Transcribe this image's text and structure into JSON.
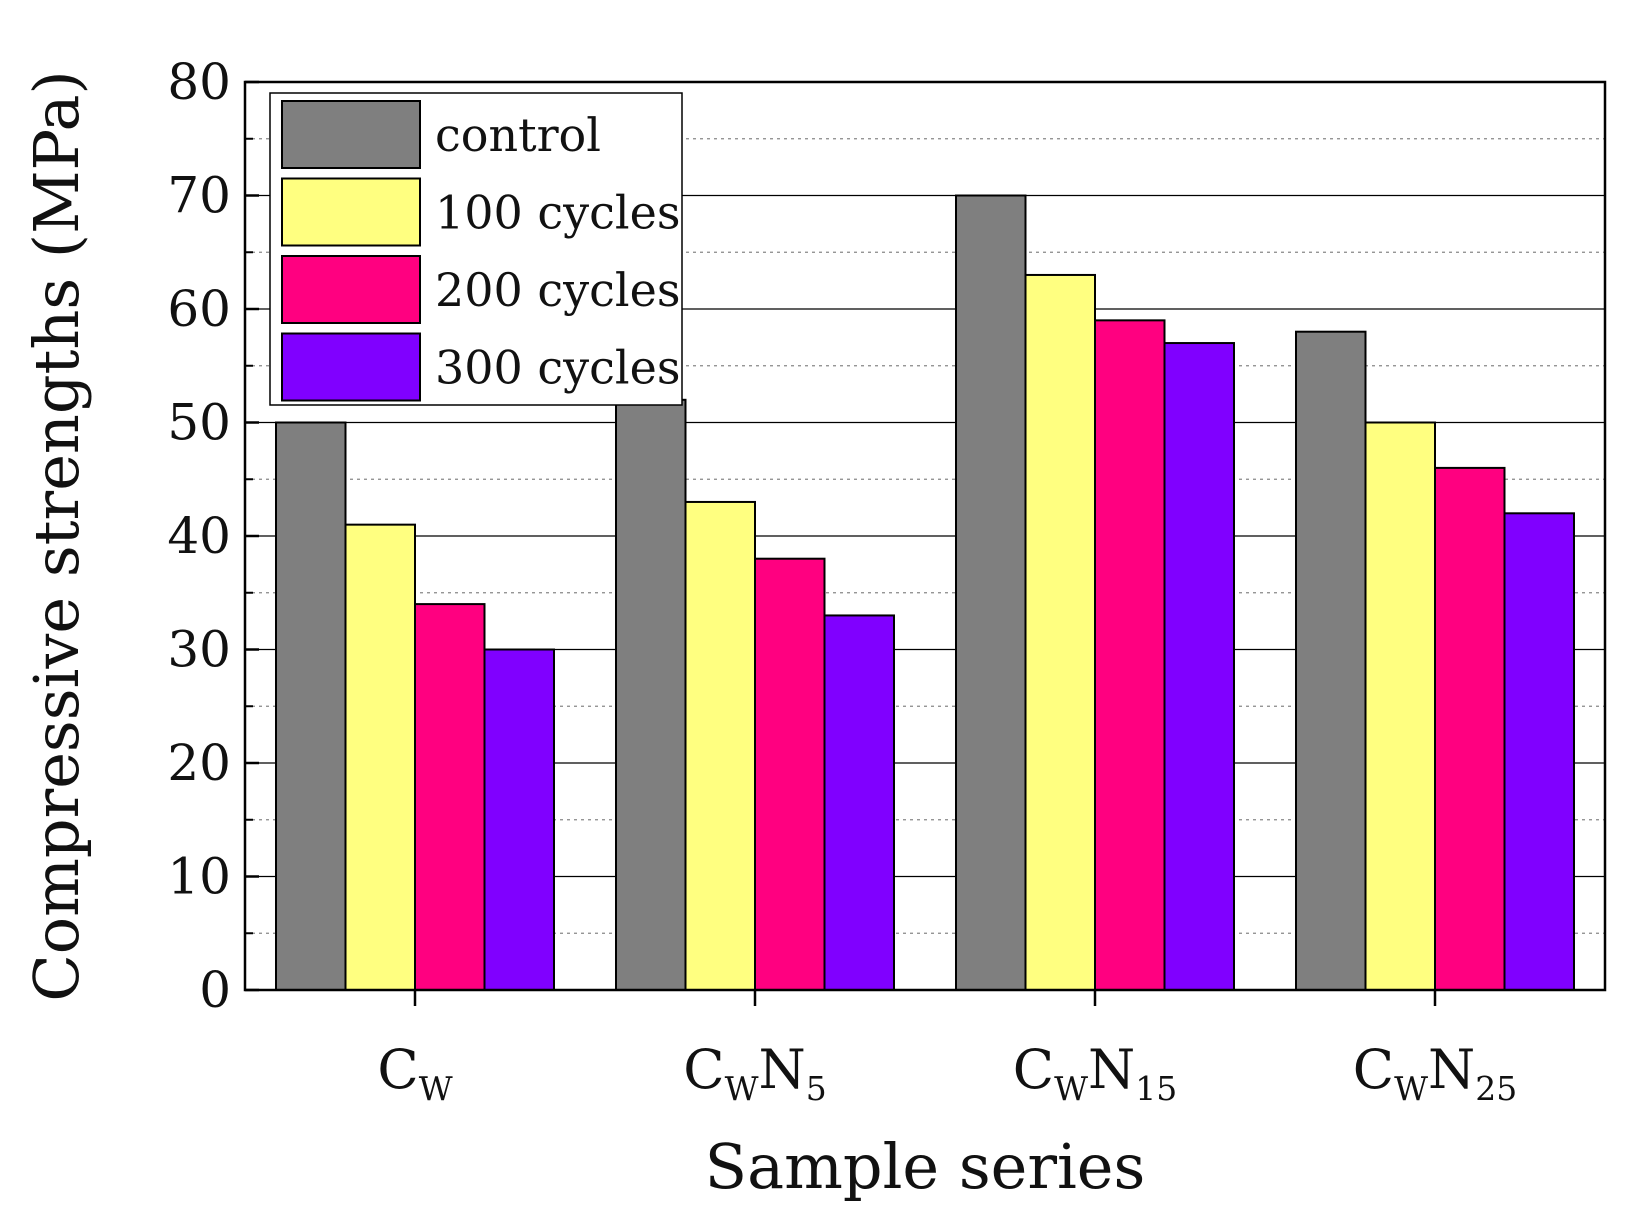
{
  "chart_data": {
    "type": "bar",
    "title": "",
    "xlabel": "Sample series",
    "ylabel": "Compressive strengths (MPa)",
    "ylim": [
      0,
      80
    ],
    "y_ticks": [
      0,
      10,
      20,
      30,
      40,
      50,
      60,
      70,
      80
    ],
    "y_tick_labels": [
      "0",
      "10",
      "20",
      "30",
      "40",
      "50",
      "60",
      "70",
      "80"
    ],
    "grid": true,
    "legend_position": "top-left",
    "categories": [
      "CW",
      "CWN5",
      "CWN15",
      "CWN25"
    ],
    "category_labels": [
      {
        "main": "C",
        "sub": "W",
        "main2": "",
        "sub2": ""
      },
      {
        "main": "C",
        "sub": "W",
        "main2": "N",
        "sub2": "5"
      },
      {
        "main": "C",
        "sub": "W",
        "main2": "N",
        "sub2": "15"
      },
      {
        "main": "C",
        "sub": "W",
        "main2": "N",
        "sub2": "25"
      }
    ],
    "series": [
      {
        "name": "control",
        "color": "#7f7f7f",
        "values": [
          50,
          52,
          70,
          58
        ]
      },
      {
        "name": "100 cycles",
        "color": "#ffff80",
        "values": [
          41,
          43,
          63,
          50
        ]
      },
      {
        "name": "200 cycles",
        "color": "#ff0080",
        "values": [
          34,
          38,
          59,
          46
        ]
      },
      {
        "name": "300 cycles",
        "color": "#8000ff",
        "values": [
          30,
          33,
          57,
          42
        ]
      }
    ]
  }
}
